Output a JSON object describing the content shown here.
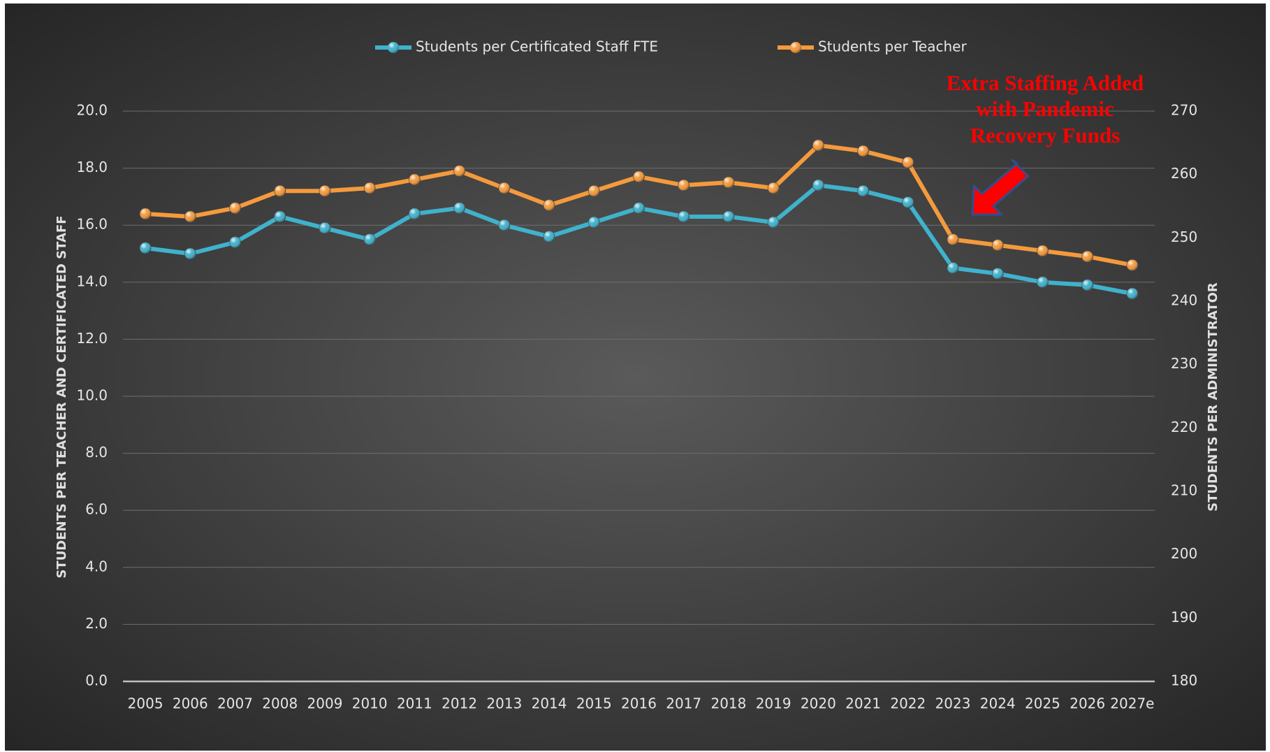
{
  "chart_data": {
    "type": "line",
    "categories": [
      "2005",
      "2006",
      "2007",
      "2008",
      "2009",
      "2010",
      "2011",
      "2012",
      "2013",
      "2014",
      "2015",
      "2016",
      "2017",
      "2018",
      "2019",
      "2020",
      "2021",
      "2022",
      "2023",
      "2024",
      "2025",
      "2026",
      "2027e"
    ],
    "series": [
      {
        "name": "Students per Certificated Staff FTE",
        "color": "#3fb2cc",
        "values": [
          15.2,
          15.0,
          15.4,
          16.3,
          15.9,
          15.5,
          16.4,
          16.6,
          16.0,
          15.6,
          16.1,
          16.6,
          16.3,
          16.3,
          16.1,
          17.4,
          17.2,
          16.8,
          14.5,
          14.3,
          14.0,
          13.9,
          13.6
        ]
      },
      {
        "name": "Students per Teacher",
        "color": "#f59a3c",
        "values": [
          16.4,
          16.3,
          16.6,
          17.2,
          17.2,
          17.3,
          17.6,
          17.9,
          17.3,
          16.7,
          17.2,
          17.7,
          17.4,
          17.5,
          17.3,
          18.8,
          18.6,
          18.2,
          15.5,
          15.3,
          15.1,
          14.9,
          14.6
        ]
      }
    ],
    "ylim": [
      0,
      20
    ],
    "yticks": [
      {
        "value": 0,
        "label": "0.0"
      },
      {
        "value": 2,
        "label": "2.0"
      },
      {
        "value": 4,
        "label": "4.0"
      },
      {
        "value": 6,
        "label": "6.0"
      },
      {
        "value": 8,
        "label": "8.0"
      },
      {
        "value": 10,
        "label": "10.0"
      },
      {
        "value": 12,
        "label": "12.0"
      },
      {
        "value": 14,
        "label": "14.0"
      },
      {
        "value": 16,
        "label": "16.0"
      },
      {
        "value": 18,
        "label": "18.0"
      },
      {
        "value": 20,
        "label": "20.0"
      }
    ],
    "y2lim": [
      180,
      270
    ],
    "y2ticks": [
      180,
      190,
      200,
      210,
      220,
      230,
      240,
      250,
      260,
      270
    ],
    "ylabel": "STUDENTS PER TEACHER AND CERTIFICATED STAFF",
    "y2label": "STUDENTS PER ADMINISTRATOR",
    "annotation": [
      "Extra Staffing Added",
      "with Pandemic",
      "Recovery Funds"
    ],
    "grid": true,
    "legend": "top"
  }
}
